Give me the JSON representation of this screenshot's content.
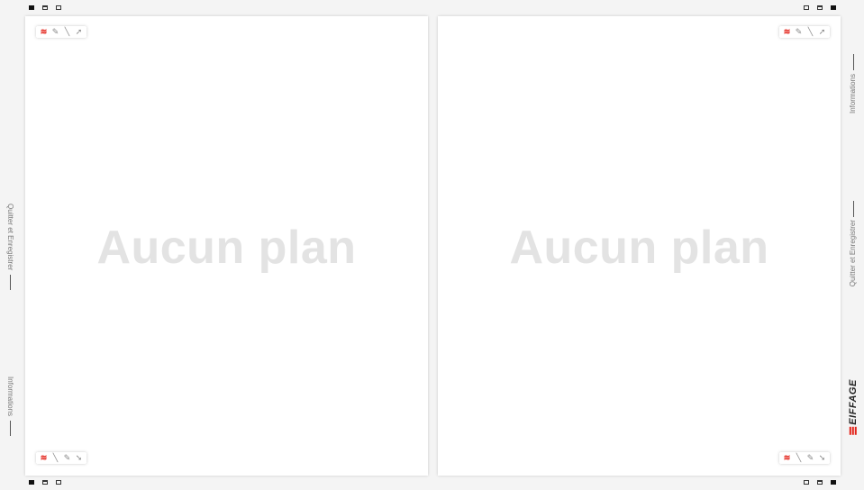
{
  "brand": {
    "name": "EIFFAGE",
    "accent_color": "#e32219"
  },
  "panels": [
    {
      "id": "left",
      "empty_text": "Aucun plan"
    },
    {
      "id": "right",
      "empty_text": "Aucun plan"
    }
  ],
  "toolbar_icons": [
    "measure-icon",
    "pencil-icon",
    "line-icon",
    "arrow-icon"
  ],
  "side_menu": {
    "quit": "Quitter et Enregistrer",
    "info": "Informations"
  },
  "corner_icons": [
    "window-filled-icon",
    "window-icon",
    "window-outline-icon"
  ]
}
